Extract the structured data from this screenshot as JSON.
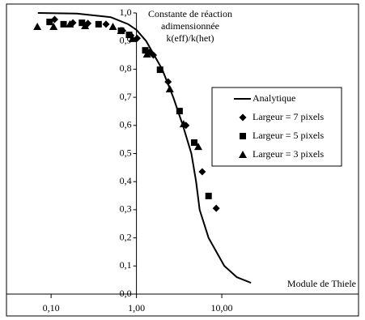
{
  "chart_data": {
    "type": "line",
    "title_lines": [
      "Constante de réaction",
      "adimensionnée",
      "k(eff)/k(het)"
    ],
    "x_label": "Module de Thiele",
    "log_x": true,
    "xlim": [
      0.03,
      400
    ],
    "xticks": [
      {
        "value": 0.1,
        "label": "0,10"
      },
      {
        "value": 1,
        "label": "1,00"
      },
      {
        "value": 10,
        "label": "10,00"
      }
    ],
    "ylim": [
      0,
      1
    ],
    "yticks": [
      {
        "value": 0,
        "label": "0,0"
      },
      {
        "value": 0.1,
        "label": "0,1"
      },
      {
        "value": 0.2,
        "label": "0,2"
      },
      {
        "value": 0.3,
        "label": "0,3"
      },
      {
        "value": 0.4,
        "label": "0,4"
      },
      {
        "value": 0.5,
        "label": "0,5"
      },
      {
        "value": 0.6,
        "label": "0,6"
      },
      {
        "value": 0.7,
        "label": "0,7"
      },
      {
        "value": 0.8,
        "label": "0,8"
      },
      {
        "value": 0.9,
        "label": "0,9"
      },
      {
        "value": 1,
        "label": "1,0"
      }
    ],
    "legend": "right",
    "series": [
      {
        "name": "Analytique",
        "type": "line",
        "color": "#000000",
        "x": [
          0.07,
          0.2,
          0.5,
          0.8,
          1.0,
          1.3,
          2,
          2.7,
          3.5,
          4.4,
          5,
          5.5,
          7,
          10.7,
          15,
          22
        ],
        "values": [
          1.0,
          0.998,
          0.985,
          0.96,
          0.94,
          0.9,
          0.8,
          0.7,
          0.6,
          0.5,
          0.4,
          0.3,
          0.2,
          0.1,
          0.06,
          0.04
        ]
      },
      {
        "name": "Largeur = 7 pixels",
        "type": "scatter",
        "marker": "diamond",
        "color": "#000000",
        "x": [
          0.11,
          0.18,
          0.27,
          0.44,
          0.69,
          0.86,
          1.02,
          1.42,
          1.58,
          2.35,
          3.8,
          5.9,
          8.6
        ],
        "values": [
          0.977,
          0.965,
          0.963,
          0.96,
          0.937,
          0.92,
          0.91,
          0.86,
          0.85,
          0.755,
          0.6,
          0.435,
          0.305
        ]
      },
      {
        "name": "Largeur = 5 pixels",
        "type": "scatter",
        "marker": "square",
        "color": "#000000",
        "x": [
          0.096,
          0.14,
          0.23,
          0.36,
          0.66,
          0.82,
          1.27,
          1.89,
          3.2,
          4.75,
          7.0
        ],
        "values": [
          0.968,
          0.96,
          0.965,
          0.96,
          0.937,
          0.922,
          0.867,
          0.798,
          0.651,
          0.539,
          0.349
        ]
      },
      {
        "name": "Largeur = 3 pixels",
        "type": "scatter",
        "marker": "triangle",
        "color": "#000000",
        "x": [
          0.069,
          0.107,
          0.166,
          0.25,
          0.53,
          0.66,
          0.9,
          1.33,
          2.46,
          3.57,
          5.3
        ],
        "values": [
          0.951,
          0.951,
          0.96,
          0.954,
          0.951,
          0.937,
          0.908,
          0.853,
          0.729,
          0.605,
          0.524
        ]
      }
    ]
  }
}
